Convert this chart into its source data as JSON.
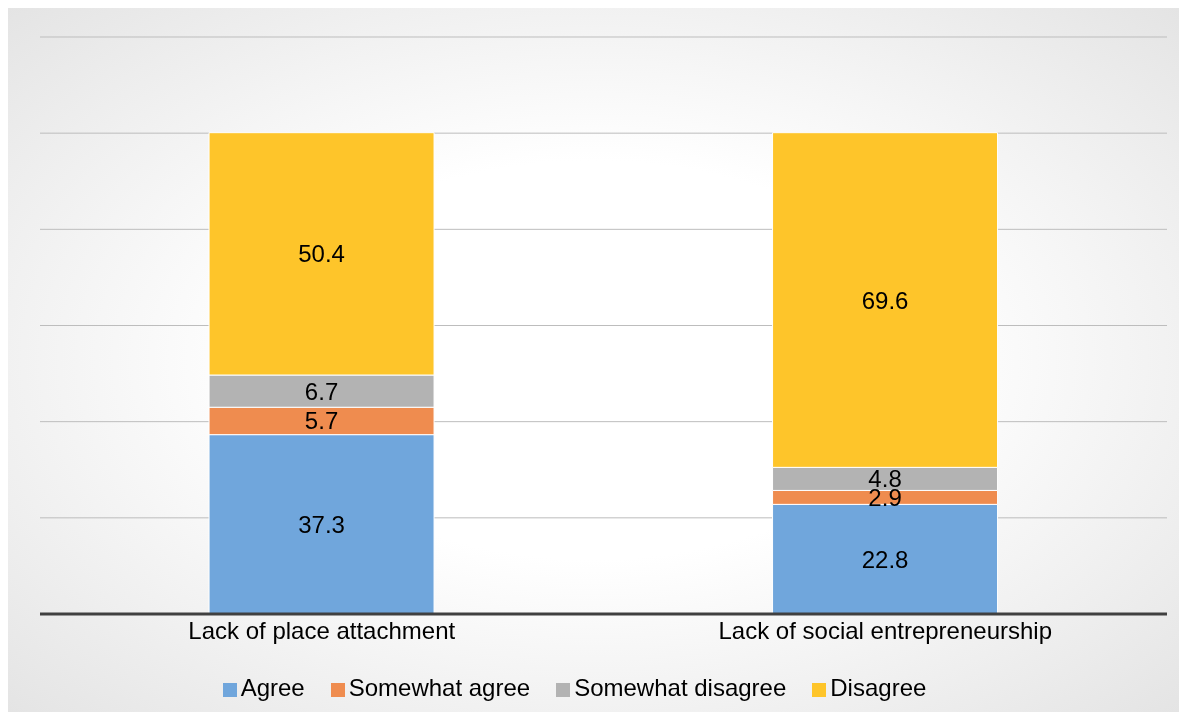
{
  "chart_data": {
    "type": "bar",
    "stacked": true,
    "categories": [
      "Lack of place attachment",
      "Lack of social entrepreneurship"
    ],
    "series": [
      {
        "name": "Agree",
        "color": "#70a6dc",
        "values": [
          37.3,
          22.8
        ]
      },
      {
        "name": "Somewhat agree",
        "color": "#ef8c4f",
        "values": [
          5.7,
          2.9
        ]
      },
      {
        "name": "Somewhat disagree",
        "color": "#b3b3b3",
        "values": [
          6.7,
          4.8
        ]
      },
      {
        "name": "Disagree",
        "color": "#fec52a",
        "values": [
          50.4,
          69.6
        ]
      }
    ],
    "ylim": [
      0,
      120
    ],
    "yticks": [
      {
        "value": 0,
        "label": null
      },
      {
        "value": 20,
        "label": null
      },
      {
        "value": 40,
        "label": null
      },
      {
        "value": 60,
        "label": null
      },
      {
        "value": 80,
        "label": null
      },
      {
        "value": 100,
        "label": null
      },
      {
        "value": 120,
        "label": null
      }
    ],
    "tick_labels": "x",
    "grid": "y",
    "legend": "bottom",
    "data_labels": true
  }
}
